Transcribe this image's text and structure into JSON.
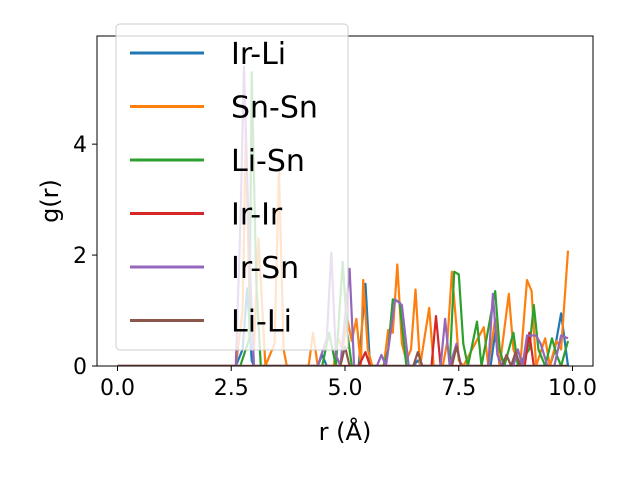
{
  "chart_data": {
    "type": "line",
    "title": "",
    "xlabel": "r (Å)",
    "ylabel": "g(r)",
    "xlim": [
      -0.45,
      10.45
    ],
    "ylim": [
      0,
      5.95
    ],
    "xticks": [
      0.0,
      2.5,
      5.0,
      7.5,
      10.0
    ],
    "xtick_labels": [
      "0.0",
      "2.5",
      "5.0",
      "7.5",
      "10.0"
    ],
    "yticks": [
      0,
      2,
      4
    ],
    "ytick_labels": [
      "0",
      "2",
      "4"
    ],
    "grid": false,
    "legend_position": "upper left",
    "series": [
      {
        "name": "Ir-Li",
        "color": "#1f77b4",
        "points": [
          [
            0,
            0
          ],
          [
            2.6,
            0
          ],
          [
            2.75,
            0.3
          ],
          [
            2.85,
            1.4
          ],
          [
            2.95,
            0.1
          ],
          [
            3.0,
            0
          ],
          [
            4.4,
            0
          ],
          [
            4.5,
            0.2
          ],
          [
            4.6,
            0
          ],
          [
            5.3,
            0
          ],
          [
            5.45,
            1.48
          ],
          [
            5.55,
            0
          ],
          [
            6.5,
            0
          ],
          [
            6.6,
            0.1
          ],
          [
            6.7,
            0
          ],
          [
            8.2,
            0
          ],
          [
            8.3,
            0.6
          ],
          [
            8.4,
            0
          ],
          [
            9.5,
            0
          ],
          [
            9.6,
            0.25
          ],
          [
            9.75,
            0.95
          ],
          [
            9.9,
            0
          ]
        ]
      },
      {
        "name": "Sn-Sn",
        "color": "#ff7f0e",
        "points": [
          [
            0,
            0
          ],
          [
            2.6,
            0
          ],
          [
            2.75,
            1.0
          ],
          [
            2.82,
            4.2
          ],
          [
            2.9,
            1.2
          ],
          [
            3.0,
            0.3
          ],
          [
            3.1,
            2.3
          ],
          [
            3.25,
            0
          ],
          [
            3.45,
            0.4
          ],
          [
            3.55,
            3.5
          ],
          [
            3.65,
            0.3
          ],
          [
            3.72,
            0
          ],
          [
            4.2,
            0
          ],
          [
            4.3,
            0.6
          ],
          [
            4.4,
            0
          ],
          [
            4.75,
            0
          ],
          [
            4.85,
            0.5
          ],
          [
            4.95,
            0.3
          ],
          [
            5.05,
            0.85
          ],
          [
            5.15,
            0.45
          ],
          [
            5.25,
            0.85
          ],
          [
            5.35,
            0
          ],
          [
            5.4,
            1.55
          ],
          [
            5.5,
            0.3
          ],
          [
            5.6,
            0
          ],
          [
            5.85,
            0
          ],
          [
            5.95,
            0.65
          ],
          [
            6.05,
            0.6
          ],
          [
            6.15,
            1.83
          ],
          [
            6.25,
            0.4
          ],
          [
            6.35,
            0.1
          ],
          [
            6.45,
            0.3
          ],
          [
            6.55,
            1.38
          ],
          [
            6.65,
            0
          ],
          [
            6.85,
            1.05
          ],
          [
            6.95,
            0
          ],
          [
            7.15,
            0
          ],
          [
            7.25,
            0.45
          ],
          [
            7.35,
            1.7
          ],
          [
            7.45,
            0.7
          ],
          [
            7.5,
            0.1
          ],
          [
            7.6,
            0
          ],
          [
            8.05,
            0.7
          ],
          [
            8.15,
            0
          ],
          [
            8.3,
            0.85
          ],
          [
            8.4,
            0
          ],
          [
            8.6,
            1.3
          ],
          [
            8.7,
            0.3
          ],
          [
            8.85,
            0
          ],
          [
            9.0,
            1.55
          ],
          [
            9.1,
            1.35
          ],
          [
            9.2,
            0
          ],
          [
            9.4,
            0.5
          ],
          [
            9.5,
            0
          ],
          [
            9.65,
            0.45
          ],
          [
            9.75,
            0.3
          ],
          [
            9.9,
            2.08
          ]
        ]
      },
      {
        "name": "Li-Sn",
        "color": "#2ca02c",
        "points": [
          [
            0,
            0
          ],
          [
            2.7,
            0
          ],
          [
            2.9,
            0.5
          ],
          [
            2.95,
            5.3
          ],
          [
            3.05,
            1.5
          ],
          [
            3.15,
            0
          ],
          [
            4.5,
            0
          ],
          [
            4.65,
            0.6
          ],
          [
            4.8,
            0
          ],
          [
            4.95,
            1.88
          ],
          [
            5.05,
            0.6
          ],
          [
            5.15,
            0
          ],
          [
            5.85,
            0
          ],
          [
            5.95,
            0.3
          ],
          [
            6.05,
            1.2
          ],
          [
            6.2,
            1.15
          ],
          [
            6.35,
            0
          ],
          [
            7.3,
            0
          ],
          [
            7.4,
            1.7
          ],
          [
            7.5,
            1.65
          ],
          [
            7.6,
            0.4
          ],
          [
            7.7,
            0
          ],
          [
            7.9,
            0.8
          ],
          [
            8.0,
            0
          ],
          [
            8.3,
            1.35
          ],
          [
            8.4,
            0.3
          ],
          [
            8.5,
            0
          ],
          [
            8.7,
            0.6
          ],
          [
            8.8,
            0
          ],
          [
            9.05,
            0.3
          ],
          [
            9.15,
            1.1
          ],
          [
            9.25,
            0.3
          ],
          [
            9.4,
            0
          ],
          [
            9.55,
            0.5
          ],
          [
            9.65,
            0.2
          ],
          [
            9.75,
            0
          ],
          [
            9.9,
            0.45
          ]
        ]
      },
      {
        "name": "Ir-Ir",
        "color": "#d62728",
        "points": [
          [
            0,
            0
          ],
          [
            5.3,
            0
          ],
          [
            5.45,
            0.25
          ],
          [
            5.55,
            0
          ],
          [
            6.9,
            0
          ],
          [
            7.0,
            0.9
          ],
          [
            7.1,
            0
          ],
          [
            8.95,
            0
          ],
          [
            9.05,
            0.6
          ],
          [
            9.15,
            0
          ],
          [
            9.9,
            0
          ]
        ]
      },
      {
        "name": "Ir-Sn",
        "color": "#9467bd",
        "points": [
          [
            0,
            0
          ],
          [
            2.6,
            0
          ],
          [
            2.7,
            2.5
          ],
          [
            2.78,
            5.4
          ],
          [
            2.9,
            2.0
          ],
          [
            3.0,
            0
          ],
          [
            4.4,
            0
          ],
          [
            4.6,
            0.5
          ],
          [
            4.7,
            2.05
          ],
          [
            4.8,
            0.2
          ],
          [
            4.9,
            0
          ],
          [
            5.1,
            1.75
          ],
          [
            5.2,
            0
          ],
          [
            5.7,
            0
          ],
          [
            5.8,
            0.2
          ],
          [
            5.9,
            0
          ],
          [
            6.1,
            1.2
          ],
          [
            6.25,
            1.1
          ],
          [
            6.4,
            0
          ],
          [
            7.1,
            0
          ],
          [
            7.2,
            0.85
          ],
          [
            7.3,
            0
          ],
          [
            7.45,
            0.4
          ],
          [
            7.55,
            0
          ],
          [
            8.15,
            0
          ],
          [
            8.25,
            1.3
          ],
          [
            8.35,
            0.2
          ],
          [
            8.45,
            0
          ],
          [
            8.7,
            0
          ],
          [
            8.8,
            0.3
          ],
          [
            8.9,
            0
          ],
          [
            9.0,
            0.55
          ],
          [
            9.2,
            0.55
          ],
          [
            9.3,
            0.4
          ],
          [
            9.45,
            0
          ],
          [
            9.6,
            0
          ],
          [
            9.75,
            0.55
          ],
          [
            9.9,
            0.5
          ]
        ]
      },
      {
        "name": "Li-Li",
        "color": "#8c564b",
        "points": [
          [
            0,
            0
          ],
          [
            4.9,
            0
          ],
          [
            5.0,
            0.35
          ],
          [
            5.1,
            0
          ],
          [
            6.5,
            0
          ],
          [
            6.6,
            0.25
          ],
          [
            6.7,
            0
          ],
          [
            7.35,
            0
          ],
          [
            7.45,
            0.35
          ],
          [
            7.55,
            0
          ],
          [
            8.45,
            0
          ],
          [
            8.55,
            0.2
          ],
          [
            8.65,
            0
          ],
          [
            8.75,
            0.25
          ],
          [
            8.85,
            0
          ],
          [
            9.9,
            0
          ]
        ]
      }
    ]
  }
}
